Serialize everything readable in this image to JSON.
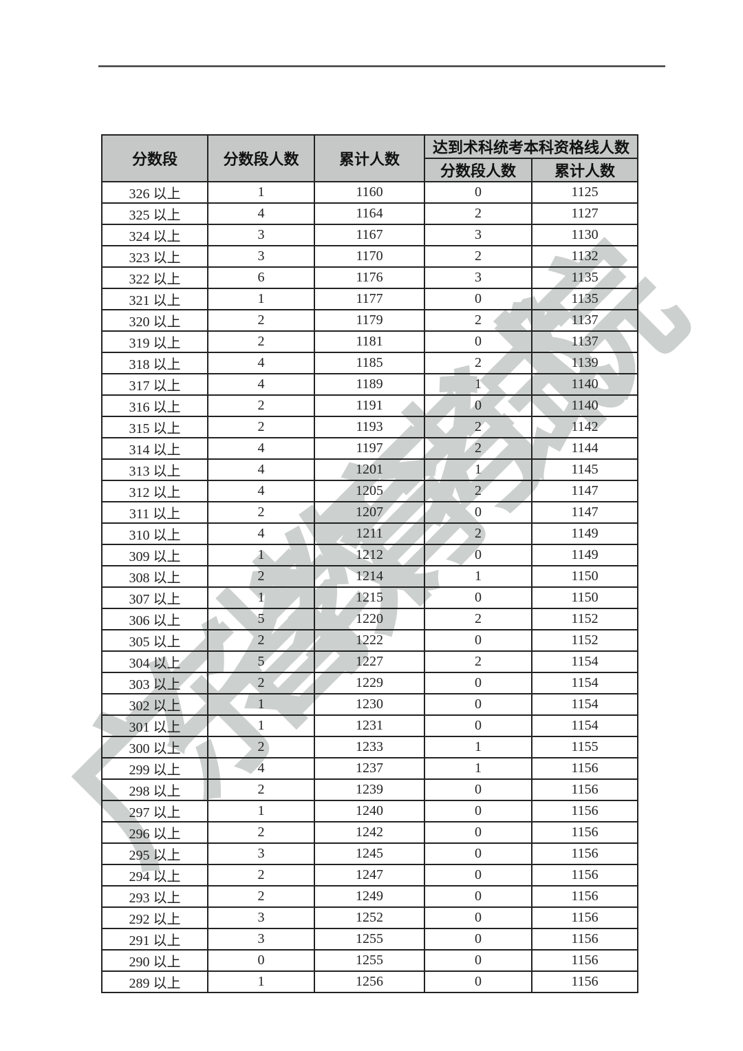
{
  "watermark": {
    "text": "广东省教育考试院"
  },
  "colors": {
    "header_bg": "#c6c8c7",
    "border": "#222222",
    "watermark_gray": "#ccd0cf"
  },
  "table": {
    "header": {
      "col_score_range": "分数段",
      "col_segment_count": "分数段人数",
      "col_cumulative_count": "累计人数",
      "col_qualified_group": "达到术科统考本科资格线人数",
      "col_qualified_segment_count": "分数段人数",
      "col_qualified_cumulative_count": "累计人数"
    },
    "rows": [
      {
        "label": "326 以上",
        "seg": 1,
        "cum": 1160,
        "q_seg": 0,
        "q_cum": 1125
      },
      {
        "label": "325 以上",
        "seg": 4,
        "cum": 1164,
        "q_seg": 2,
        "q_cum": 1127
      },
      {
        "label": "324 以上",
        "seg": 3,
        "cum": 1167,
        "q_seg": 3,
        "q_cum": 1130
      },
      {
        "label": "323 以上",
        "seg": 3,
        "cum": 1170,
        "q_seg": 2,
        "q_cum": 1132
      },
      {
        "label": "322 以上",
        "seg": 6,
        "cum": 1176,
        "q_seg": 3,
        "q_cum": 1135
      },
      {
        "label": "321 以上",
        "seg": 1,
        "cum": 1177,
        "q_seg": 0,
        "q_cum": 1135
      },
      {
        "label": "320 以上",
        "seg": 2,
        "cum": 1179,
        "q_seg": 2,
        "q_cum": 1137
      },
      {
        "label": "319 以上",
        "seg": 2,
        "cum": 1181,
        "q_seg": 0,
        "q_cum": 1137
      },
      {
        "label": "318 以上",
        "seg": 4,
        "cum": 1185,
        "q_seg": 2,
        "q_cum": 1139
      },
      {
        "label": "317 以上",
        "seg": 4,
        "cum": 1189,
        "q_seg": 1,
        "q_cum": 1140
      },
      {
        "label": "316 以上",
        "seg": 2,
        "cum": 1191,
        "q_seg": 0,
        "q_cum": 1140
      },
      {
        "label": "315 以上",
        "seg": 2,
        "cum": 1193,
        "q_seg": 2,
        "q_cum": 1142
      },
      {
        "label": "314 以上",
        "seg": 4,
        "cum": 1197,
        "q_seg": 2,
        "q_cum": 1144
      },
      {
        "label": "313 以上",
        "seg": 4,
        "cum": 1201,
        "q_seg": 1,
        "q_cum": 1145
      },
      {
        "label": "312 以上",
        "seg": 4,
        "cum": 1205,
        "q_seg": 2,
        "q_cum": 1147
      },
      {
        "label": "311 以上",
        "seg": 2,
        "cum": 1207,
        "q_seg": 0,
        "q_cum": 1147
      },
      {
        "label": "310 以上",
        "seg": 4,
        "cum": 1211,
        "q_seg": 2,
        "q_cum": 1149
      },
      {
        "label": "309 以上",
        "seg": 1,
        "cum": 1212,
        "q_seg": 0,
        "q_cum": 1149
      },
      {
        "label": "308 以上",
        "seg": 2,
        "cum": 1214,
        "q_seg": 1,
        "q_cum": 1150
      },
      {
        "label": "307 以上",
        "seg": 1,
        "cum": 1215,
        "q_seg": 0,
        "q_cum": 1150
      },
      {
        "label": "306 以上",
        "seg": 5,
        "cum": 1220,
        "q_seg": 2,
        "q_cum": 1152
      },
      {
        "label": "305 以上",
        "seg": 2,
        "cum": 1222,
        "q_seg": 0,
        "q_cum": 1152
      },
      {
        "label": "304 以上",
        "seg": 5,
        "cum": 1227,
        "q_seg": 2,
        "q_cum": 1154
      },
      {
        "label": "303 以上",
        "seg": 2,
        "cum": 1229,
        "q_seg": 0,
        "q_cum": 1154
      },
      {
        "label": "302 以上",
        "seg": 1,
        "cum": 1230,
        "q_seg": 0,
        "q_cum": 1154
      },
      {
        "label": "301 以上",
        "seg": 1,
        "cum": 1231,
        "q_seg": 0,
        "q_cum": 1154
      },
      {
        "label": "300 以上",
        "seg": 2,
        "cum": 1233,
        "q_seg": 1,
        "q_cum": 1155
      },
      {
        "label": "299 以上",
        "seg": 4,
        "cum": 1237,
        "q_seg": 1,
        "q_cum": 1156
      },
      {
        "label": "298 以上",
        "seg": 2,
        "cum": 1239,
        "q_seg": 0,
        "q_cum": 1156
      },
      {
        "label": "297 以上",
        "seg": 1,
        "cum": 1240,
        "q_seg": 0,
        "q_cum": 1156
      },
      {
        "label": "296 以上",
        "seg": 2,
        "cum": 1242,
        "q_seg": 0,
        "q_cum": 1156
      },
      {
        "label": "295 以上",
        "seg": 3,
        "cum": 1245,
        "q_seg": 0,
        "q_cum": 1156
      },
      {
        "label": "294 以上",
        "seg": 2,
        "cum": 1247,
        "q_seg": 0,
        "q_cum": 1156
      },
      {
        "label": "293 以上",
        "seg": 2,
        "cum": 1249,
        "q_seg": 0,
        "q_cum": 1156
      },
      {
        "label": "292 以上",
        "seg": 3,
        "cum": 1252,
        "q_seg": 0,
        "q_cum": 1156
      },
      {
        "label": "291 以上",
        "seg": 3,
        "cum": 1255,
        "q_seg": 0,
        "q_cum": 1156
      },
      {
        "label": "290 以上",
        "seg": 0,
        "cum": 1255,
        "q_seg": 0,
        "q_cum": 1156
      },
      {
        "label": "289 以上",
        "seg": 1,
        "cum": 1256,
        "q_seg": 0,
        "q_cum": 1156
      }
    ]
  }
}
